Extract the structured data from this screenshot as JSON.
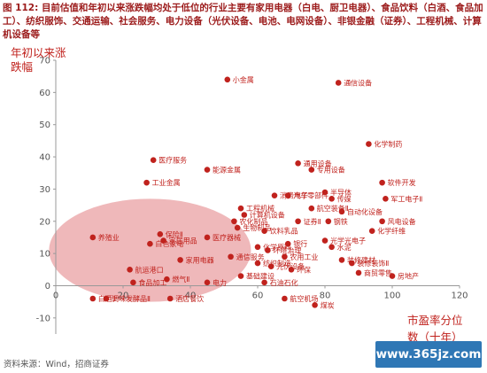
{
  "caption": {
    "label": "图 112:",
    "text": "目前估值和年初以来涨跌幅均处于低位的行业主要有家用电器（白电、厨卫电器）、食品饮料（白酒、食品加工）、纺织服饰、交通运输、社会服务、电力设备（光伏设备、电池、电网设备）、非银金融（证券）、工程机械、计算机设备等"
  },
  "source": "资料来源：Wind，招商证券",
  "watermark": "www.365jz.com",
  "colors": {
    "marker": "#c0221d",
    "ellipse": "#eaa0a3",
    "label": "#c0221d",
    "axis": "#999999"
  },
  "chart_data": {
    "type": "scatter",
    "ylabel": "年初以来涨跌幅",
    "xlabel": "市盈率分位数（十年）",
    "xlim": [
      0,
      120
    ],
    "ylim": [
      -15,
      70
    ],
    "xticks": [
      0,
      20,
      40,
      60,
      80,
      100,
      120
    ],
    "yticks": [
      -10,
      0,
      10,
      20,
      30,
      40,
      50,
      60,
      70
    ],
    "points": [
      {
        "name": "小金属",
        "x": 51,
        "y": 64
      },
      {
        "name": "通信设备",
        "x": 84,
        "y": 63
      },
      {
        "name": "化学制药",
        "x": 93,
        "y": 44
      },
      {
        "name": "通用设备",
        "x": 72,
        "y": 38
      },
      {
        "name": "专用设备",
        "x": 76,
        "y": 36
      },
      {
        "name": "医疗服务",
        "x": 29,
        "y": 39
      },
      {
        "name": "能源金属",
        "x": 45,
        "y": 36
      },
      {
        "name": "工业金属",
        "x": 27,
        "y": 32
      },
      {
        "name": "软件开发",
        "x": 97,
        "y": 32
      },
      {
        "name": "半导体",
        "x": 80,
        "y": 29
      },
      {
        "name": "军工电子Ⅱ",
        "x": 98,
        "y": 27
      },
      {
        "name": "消费电子",
        "x": 65,
        "y": 28
      },
      {
        "name": "汽车零部件",
        "x": 69,
        "y": 28
      },
      {
        "name": "传媒",
        "x": 82,
        "y": 27
      },
      {
        "name": "工程机械",
        "x": 55,
        "y": 24
      },
      {
        "name": "航空装备Ⅱ",
        "x": 76,
        "y": 24
      },
      {
        "name": "自动化设备",
        "x": 85,
        "y": 23
      },
      {
        "name": "计算机设备",
        "x": 56,
        "y": 22
      },
      {
        "name": "农化制品",
        "x": 53,
        "y": 20
      },
      {
        "name": "证券Ⅱ",
        "x": 72,
        "y": 20
      },
      {
        "name": "钢铁",
        "x": 81,
        "y": 20
      },
      {
        "name": "风电设备",
        "x": 97,
        "y": 20
      },
      {
        "name": "生物制品",
        "x": 54,
        "y": 18
      },
      {
        "name": "饮料乳品",
        "x": 62,
        "y": 17
      },
      {
        "name": "化学纤维",
        "x": 94,
        "y": 17
      },
      {
        "name": "保险Ⅱ",
        "x": 31,
        "y": 16
      },
      {
        "name": "医疗器械",
        "x": 45,
        "y": 15
      },
      {
        "name": "光学光电子",
        "x": 80,
        "y": 14
      },
      {
        "name": "养殖业",
        "x": 11,
        "y": 15
      },
      {
        "name": "家居用品",
        "x": 32,
        "y": 14
      },
      {
        "name": "白色家电",
        "x": 28,
        "y": 13
      },
      {
        "name": "化学原料",
        "x": 60,
        "y": 12
      },
      {
        "name": "银行",
        "x": 69,
        "y": 13
      },
      {
        "name": "水泥",
        "x": 82,
        "y": 12
      },
      {
        "name": "环境治理",
        "x": 63,
        "y": 11
      },
      {
        "name": "家用电器",
        "x": 37,
        "y": 8
      },
      {
        "name": "通信服务",
        "x": 52,
        "y": 9
      },
      {
        "name": "农用工业",
        "x": 68,
        "y": 9
      },
      {
        "name": "装修建材",
        "x": 85,
        "y": 8
      },
      {
        "name": "纺织制造",
        "x": 60,
        "y": 7
      },
      {
        "name": "光伏设备",
        "x": 64,
        "y": 6
      },
      {
        "name": "装修装饰Ⅱ",
        "x": 88,
        "y": 7
      },
      {
        "name": "航运港口",
        "x": 22,
        "y": 5
      },
      {
        "name": "环保",
        "x": 70,
        "y": 5
      },
      {
        "name": "房地产",
        "x": 100,
        "y": 3
      },
      {
        "name": "商贸零售",
        "x": 90,
        "y": 4
      },
      {
        "name": "基础建设",
        "x": 55,
        "y": 3
      },
      {
        "name": "燃气Ⅱ",
        "x": 33,
        "y": 2
      },
      {
        "name": "食品加工",
        "x": 23,
        "y": 1
      },
      {
        "name": "电力",
        "x": 45,
        "y": 1
      },
      {
        "name": "石油石化",
        "x": 62,
        "y": 1
      },
      {
        "name": "白酒Ⅱ",
        "x": 11,
        "y": -4
      },
      {
        "name": "调味发酵品Ⅱ",
        "x": 15,
        "y": -4
      },
      {
        "name": "酒店餐饮",
        "x": 34,
        "y": -4
      },
      {
        "name": "航空机场",
        "x": 68,
        "y": -4
      },
      {
        "name": "煤炭",
        "x": 77,
        "y": -6
      }
    ]
  }
}
